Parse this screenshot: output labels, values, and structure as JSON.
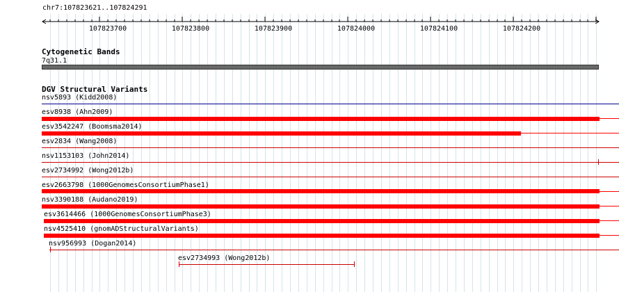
{
  "ruler": {
    "location": "chr7:107823621..107824291",
    "ticks": [
      "107823700",
      "107823800",
      "107823900",
      "107824000",
      "107824100",
      "107824200"
    ]
  },
  "cytoband": {
    "title": "Cytogenetic Bands",
    "band": "7q31.1",
    "color": "#696969"
  },
  "dgv": {
    "title": "DGV Structural Variants",
    "variants": [
      {
        "label": "nsv5893 (Kidd2008)",
        "color": "#00008b",
        "thick": false
      },
      {
        "label": "esv8938 (Ahn2009)",
        "color": "#ff0000",
        "thick": true
      },
      {
        "label": "esv3542247 (Boomsma2014)",
        "color": "#ff0000",
        "thick": true
      },
      {
        "label": "esv2834 (Wang2008)",
        "color": "#cc0000",
        "thick": false
      },
      {
        "label": "nsv1153103 (John2014)",
        "color": "#cc0000",
        "thick": false
      },
      {
        "label": "esv2734992 (Wong2012b)",
        "color": "#cc0000",
        "thick": false
      },
      {
        "label": "esv2663798 (1000GenomesConsortiumPhase1)",
        "color": "#ff0000",
        "thick": true
      },
      {
        "label": "nsv3390188 (Audano2019)",
        "color": "#ff0000",
        "thick": true
      },
      {
        "label": "esv3614466 (1000GenomesConsortiumPhase3)",
        "color": "#ff0000",
        "thick": true
      },
      {
        "label": "nsv4525410 (gnomADStructuralVariants)",
        "color": "#ff0000",
        "thick": true
      },
      {
        "label": "nsv956993 (Dogan2014)",
        "color": "#cc0000",
        "thick": false
      },
      {
        "label": "esv2734993 (Wong2012b)",
        "color": "#cc0000",
        "thick": false
      }
    ]
  }
}
